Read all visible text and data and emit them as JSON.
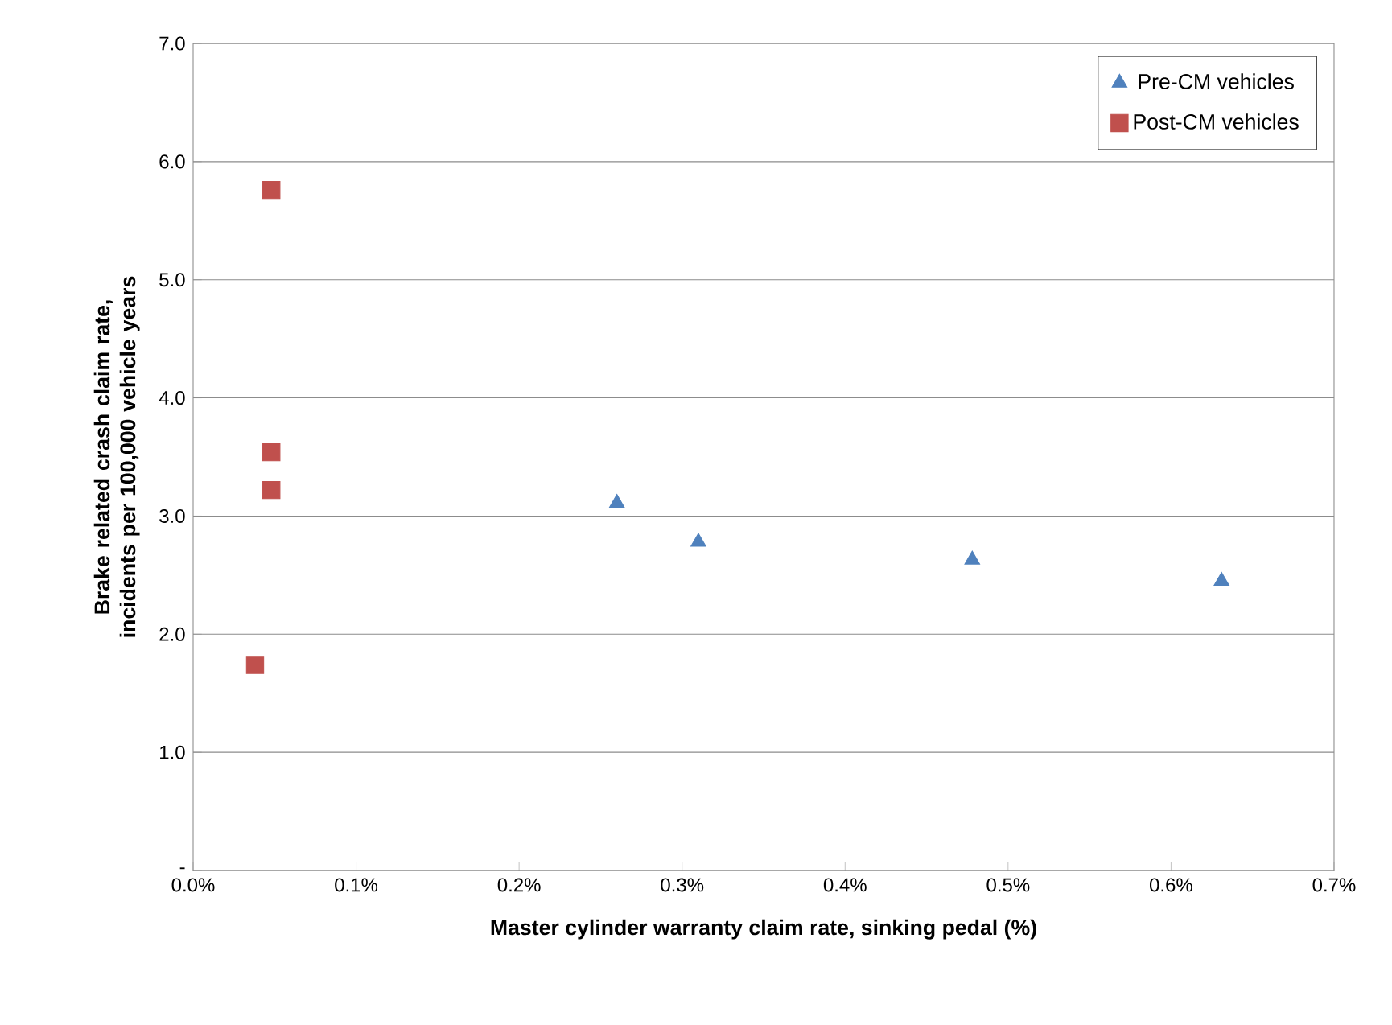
{
  "chart_data": {
    "type": "scatter",
    "xlabel": "Master cylinder warranty claim rate, sinking pedal (%)",
    "ylabel": "Brake related crash claim rate, incidents per 100,000 vehicle years",
    "series": [
      {
        "name": "Pre-CM vehicles",
        "color": "#4f81bd",
        "marker": "triangle",
        "x": [
          0.26,
          0.31,
          0.478,
          0.631
        ],
        "values": [
          3.11,
          2.78,
          2.63,
          2.45
        ]
      },
      {
        "name": "Post-CM vehicles",
        "color": "#c0504d",
        "marker": "square",
        "x": [
          0.048,
          0.048,
          0.048,
          0.038
        ],
        "values": [
          5.76,
          3.54,
          3.22,
          1.74
        ]
      }
    ],
    "xlim": [
      0,
      0.7
    ],
    "ylim": [
      0,
      7
    ],
    "xticks": [
      {
        "value": 0,
        "label": "0.0%"
      },
      {
        "value": 0.1,
        "label": "0.1%"
      },
      {
        "value": 0.2,
        "label": "0.2%"
      },
      {
        "value": 0.3,
        "label": "0.3%"
      },
      {
        "value": 0.4,
        "label": "0.4%"
      },
      {
        "value": 0.5,
        "label": "0.5%"
      },
      {
        "value": 0.6,
        "label": "0.6%"
      },
      {
        "value": 0.7,
        "label": "0.7%"
      }
    ],
    "yticks": [
      {
        "value": 0,
        "label": "-"
      },
      {
        "value": 1,
        "label": "1.0"
      },
      {
        "value": 2,
        "label": "2.0"
      },
      {
        "value": 3,
        "label": "3.0"
      },
      {
        "value": 4,
        "label": "4.0"
      },
      {
        "value": 5,
        "label": "5.0"
      },
      {
        "value": 6,
        "label": "6.0"
      },
      {
        "value": 7,
        "label": "7.0"
      }
    ],
    "grid": "y",
    "legend": "top right"
  }
}
